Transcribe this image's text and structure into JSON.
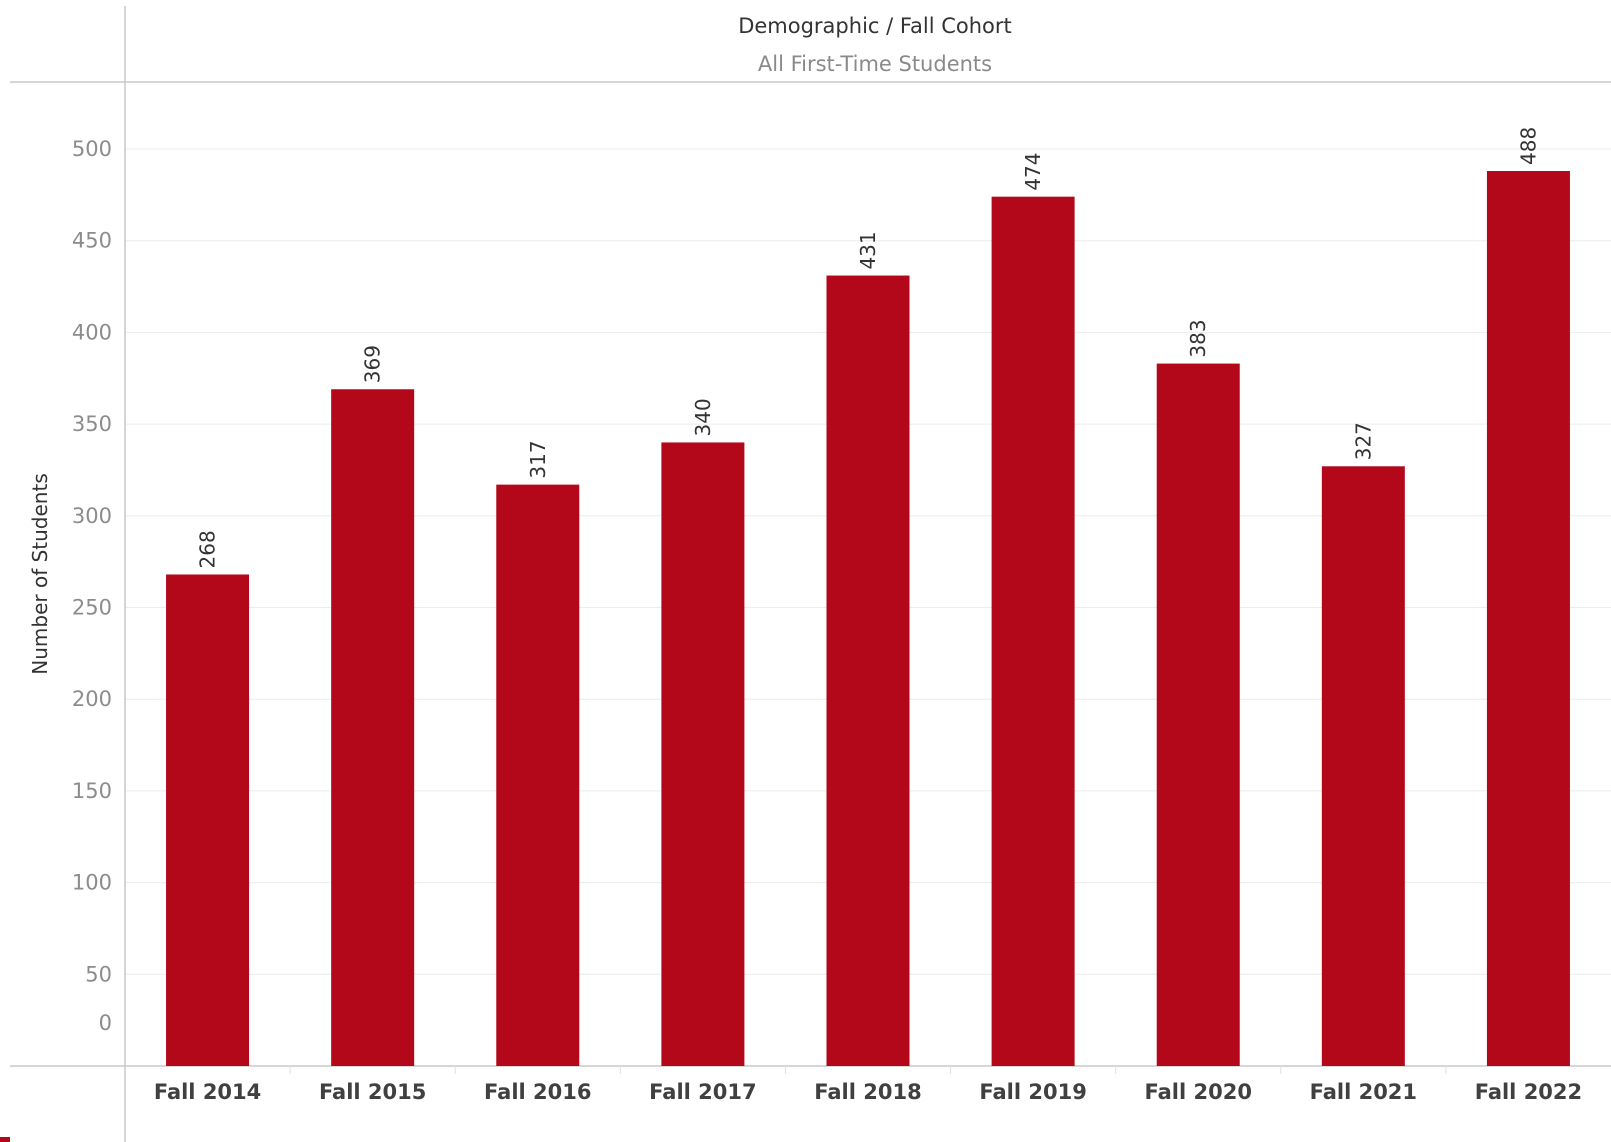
{
  "chart_data": {
    "type": "bar",
    "title": "Demographic / Fall Cohort",
    "subtitle": "All First-Time Students",
    "xlabel": "",
    "ylabel": "Number of Students",
    "categories": [
      "Fall 2014",
      "Fall 2015",
      "Fall 2016",
      "Fall 2017",
      "Fall 2018",
      "Fall 2019",
      "Fall 2020",
      "Fall 2021",
      "Fall 2022"
    ],
    "values": [
      268,
      369,
      317,
      340,
      431,
      474,
      383,
      327,
      488
    ],
    "value_labels": [
      "268",
      "369",
      "317",
      "340",
      "431",
      "474",
      "383",
      "327",
      "488"
    ],
    "ylim": [
      0,
      500
    ],
    "yticks": [
      "0",
      "50",
      "100",
      "150",
      "200",
      "250",
      "300",
      "350",
      "400",
      "450",
      "500"
    ],
    "grid": true,
    "bar_color": "#b30819",
    "label_orientation": "vertical"
  }
}
